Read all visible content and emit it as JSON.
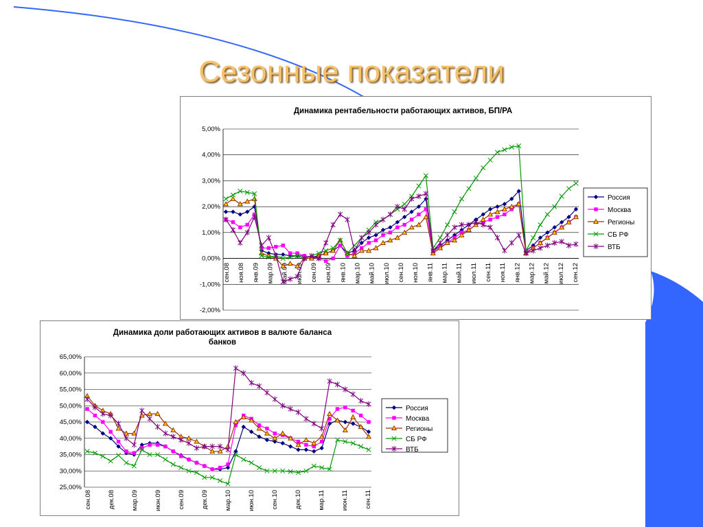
{
  "slide": {
    "title": "Сезонные показатели"
  },
  "colors": {
    "accent": "#3366ff",
    "title": "#f6c16b"
  },
  "legend_series": [
    "Россия",
    "Москва",
    "Регионы",
    "СБ РФ",
    "ВТБ"
  ],
  "chart_data": [
    {
      "type": "line",
      "title": "Динамика рентабельности работающих активов, БП/РА",
      "ylim": [
        -2,
        5
      ],
      "yticks": [
        "5,00%",
        "4,00%",
        "3,00%",
        "2,00%",
        "1,00%",
        "0,00%",
        "-1,00%",
        "-2,00%"
      ],
      "xticks": [
        "сен.08",
        "ноя.08",
        "янв.09",
        "мар.09",
        "май.09",
        "июл.09",
        "сен.09",
        "ноя.09",
        "янв.10",
        "мар.10",
        "май.10",
        "июл.10",
        "сен.10",
        "ноя.10",
        "янв.11",
        "мар.11",
        "май.11",
        "июл.11",
        "сен.11",
        "ноя.11",
        "янв.12",
        "мар.12",
        "май.12",
        "июл.12",
        "сен.12"
      ],
      "legend": "right",
      "grid": true,
      "series": [
        {
          "name": "Россия",
          "color": "#000080",
          "marker": "diamond",
          "values": [
            1.8,
            1.8,
            1.7,
            1.8,
            2.0,
            0.3,
            0.2,
            0.15,
            0.15,
            0.1,
            0.1,
            0.1,
            0.05,
            0.1,
            0.2,
            0.3,
            0.5,
            0.2,
            0.3,
            0.6,
            0.8,
            0.9,
            1.1,
            1.2,
            1.4,
            1.6,
            1.8,
            2.0,
            2.3,
            0.3,
            0.5,
            0.7,
            0.9,
            1.1,
            1.3,
            1.5,
            1.7,
            1.9,
            2.0,
            2.1,
            2.3,
            2.6,
            0.3,
            0.5,
            0.8,
            1.0,
            1.2,
            1.4,
            1.6,
            1.9
          ]
        },
        {
          "name": "Москва",
          "color": "#ff00ff",
          "marker": "square",
          "values": [
            1.5,
            1.4,
            1.2,
            1.3,
            1.7,
            0.4,
            0.4,
            0.45,
            0.5,
            0.2,
            0.2,
            0.1,
            0.05,
            0.0,
            -0.1,
            0.0,
            0.5,
            0.1,
            0.2,
            0.4,
            0.6,
            0.7,
            0.9,
            1.0,
            1.2,
            1.3,
            1.5,
            1.7,
            1.9,
            0.25,
            0.45,
            0.6,
            0.8,
            1.0,
            1.1,
            1.3,
            1.4,
            1.5,
            1.6,
            1.7,
            1.9,
            2.1,
            0.25,
            0.4,
            0.6,
            0.8,
            1.0,
            1.2,
            1.4,
            1.6
          ]
        },
        {
          "name": "Регионы",
          "color": "#993300",
          "marker": "triangle",
          "values": [
            2.1,
            2.3,
            2.1,
            2.2,
            2.3,
            0.2,
            0.1,
            0.0,
            -0.3,
            -0.2,
            -0.3,
            0.0,
            0.0,
            0.1,
            0.2,
            0.3,
            0.7,
            0.2,
            0.1,
            0.3,
            0.3,
            0.4,
            0.6,
            0.7,
            0.8,
            1.0,
            1.2,
            1.3,
            1.6,
            0.2,
            0.4,
            0.6,
            0.7,
            0.9,
            1.1,
            1.3,
            1.5,
            1.7,
            1.8,
            1.9,
            2.0,
            2.1,
            0.2,
            0.4,
            0.6,
            0.8,
            1.0,
            1.2,
            1.4,
            1.6
          ]
        },
        {
          "name": "СБ РФ",
          "color": "#009900",
          "marker": "x",
          "values": [
            2.3,
            2.45,
            2.6,
            2.55,
            2.5,
            0.1,
            0.05,
            0.1,
            0.0,
            0.05,
            0.1,
            0.0,
            0.1,
            0.2,
            0.3,
            0.4,
            0.7,
            0.2,
            0.5,
            0.8,
            1.1,
            1.4,
            1.5,
            1.7,
            1.9,
            2.1,
            2.4,
            2.8,
            3.2,
            0.4,
            0.8,
            1.3,
            1.8,
            2.3,
            2.7,
            3.1,
            3.5,
            3.8,
            4.1,
            4.2,
            4.3,
            4.35,
            0.3,
            0.8,
            1.3,
            1.7,
            2.0,
            2.4,
            2.7,
            2.9
          ]
        },
        {
          "name": "ВТБ",
          "color": "#800080",
          "marker": "star",
          "values": [
            1.5,
            1.1,
            0.6,
            1.0,
            1.6,
            0.5,
            0.8,
            0.1,
            -0.9,
            -0.8,
            -0.7,
            0.0,
            0.1,
            0.0,
            0.6,
            1.3,
            1.7,
            1.5,
            0.3,
            0.8,
            1.0,
            1.3,
            1.5,
            1.7,
            2.0,
            1.9,
            2.3,
            2.4,
            2.5,
            0.3,
            0.6,
            0.9,
            1.2,
            1.3,
            1.3,
            1.4,
            1.3,
            1.2,
            0.8,
            0.3,
            0.6,
            0.9,
            0.2,
            0.3,
            0.4,
            0.5,
            0.6,
            0.65,
            0.5,
            0.55
          ]
        }
      ]
    },
    {
      "type": "line",
      "title": "Динамика доли работающих активов в валюте баланса банков",
      "title_lines": [
        "Динамика доли работающих активов в валюте баланса",
        "банков"
      ],
      "ylim": [
        25,
        65
      ],
      "yticks": [
        "65,00%",
        "60,00%",
        "55,00%",
        "50,00%",
        "45,00%",
        "40,00%",
        "35,00%",
        "30,00%",
        "25,00%"
      ],
      "xticks": [
        "сен.08",
        "дек.08",
        "мар.09",
        "июн.09",
        "сен.09",
        "дек.09",
        "мар.10",
        "июн.10",
        "сен.10",
        "дек.10",
        "мар.11",
        "июн.11",
        "сен.11"
      ],
      "legend": "right",
      "grid": true,
      "series": [
        {
          "name": "Россия",
          "color": "#000080",
          "marker": "diamond",
          "values": [
            45.0,
            43.5,
            41.5,
            40.0,
            37.5,
            35.5,
            35.0,
            38.0,
            38.5,
            38.5,
            37.5,
            36.0,
            34.8,
            33.5,
            32.5,
            31.5,
            30.5,
            30.5,
            31.0,
            36.0,
            43.5,
            42.0,
            40.5,
            39.5,
            39.0,
            38.5,
            37.5,
            36.5,
            36.5,
            36.0,
            37.0,
            44.5,
            45.5,
            45.0,
            44.5,
            43.5,
            42.0
          ]
        },
        {
          "name": "Москва",
          "color": "#ff00ff",
          "marker": "square",
          "values": [
            49.0,
            47.0,
            45.0,
            42.0,
            39.0,
            36.0,
            35.5,
            37.0,
            38.0,
            38.0,
            37.5,
            36.0,
            34.5,
            33.5,
            32.5,
            31.5,
            30.5,
            31.0,
            32.0,
            44.0,
            47.0,
            46.0,
            44.0,
            43.0,
            41.5,
            41.0,
            40.0,
            39.0,
            38.0,
            37.5,
            39.0,
            46.0,
            49.0,
            49.5,
            48.5,
            47.0,
            45.0
          ]
        },
        {
          "name": "Регионы",
          "color": "#993300",
          "marker": "triangle",
          "values": [
            53.0,
            50.0,
            48.5,
            47.5,
            43.0,
            41.5,
            41.5,
            47.0,
            47.5,
            47.5,
            44.5,
            42.5,
            40.5,
            40.0,
            39.0,
            37.5,
            36.0,
            36.0,
            37.5,
            45.0,
            46.5,
            45.5,
            43.0,
            41.5,
            40.0,
            41.5,
            40.0,
            38.0,
            39.5,
            38.5,
            40.5,
            47.5,
            45.5,
            42.5,
            46.5,
            43.5,
            40.5
          ]
        },
        {
          "name": "СБ РФ",
          "color": "#009900",
          "marker": "x",
          "values": [
            36.0,
            35.5,
            34.5,
            33.0,
            34.8,
            32.5,
            31.5,
            36.5,
            35.0,
            35.0,
            33.5,
            32.0,
            31.0,
            30.0,
            29.5,
            28.0,
            28.0,
            27.0,
            26.0,
            35.0,
            33.5,
            32.5,
            31.0,
            30.0,
            30.0,
            30.0,
            29.8,
            29.5,
            30.0,
            31.5,
            31.0,
            30.5,
            39.5,
            39.0,
            38.5,
            37.5,
            36.5
          ]
        },
        {
          "name": "ВТБ",
          "color": "#800080",
          "marker": "star",
          "values": [
            52.0,
            49.5,
            47.5,
            47.0,
            44.5,
            40.0,
            38.0,
            48.5,
            46.0,
            43.5,
            41.5,
            40.5,
            39.5,
            38.5,
            37.0,
            37.5,
            37.5,
            37.5,
            36.5,
            61.5,
            60.0,
            57.0,
            56.0,
            54.0,
            52.0,
            50.0,
            49.0,
            48.0,
            46.0,
            44.5,
            43.0,
            57.5,
            56.5,
            55.0,
            53.5,
            51.5,
            50.5
          ]
        }
      ]
    }
  ]
}
